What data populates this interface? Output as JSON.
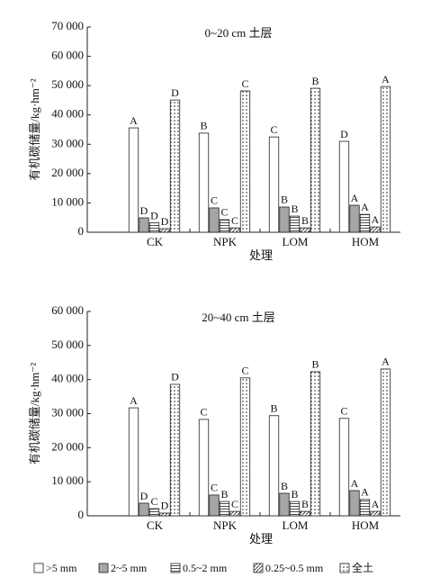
{
  "chart_data": [
    {
      "type": "bar",
      "title": "0~20 cm 土层",
      "x_label": "处理",
      "y_label": "有机碳储量/kg·hm⁻²",
      "categories": [
        "CK",
        "NPK",
        "LOM",
        "HOM"
      ],
      "ylim": [
        0,
        70000
      ],
      "yticks": [
        0,
        {
          "value": 10000,
          "label": "10 000"
        },
        {
          "value": 20000,
          "label": "20 000"
        },
        {
          "value": 30000,
          "label": "30 000"
        },
        {
          "value": 40000,
          "label": "40 000"
        },
        {
          "value": 50000,
          "label": "50 000"
        },
        {
          "value": 60000,
          "label": "60 000"
        },
        {
          "value": 70000,
          "label": "70 000"
        }
      ],
      "series": [
        {
          "name": ">5 mm",
          "color": "#ffffff",
          "pattern": "solid",
          "values": [
            35600,
            33800,
            32500,
            31000
          ],
          "letters": [
            "A",
            "B",
            "C",
            "D"
          ]
        },
        {
          "name": "2~5 mm",
          "color": "#a6a6a6",
          "pattern": "solid",
          "values": [
            4900,
            8300,
            8600,
            9200
          ],
          "letters": [
            "D",
            "C",
            "B",
            "A"
          ]
        },
        {
          "name": "0.5~2 mm",
          "color": "#ffffff",
          "pattern": "hlines",
          "values": [
            3200,
            4300,
            5500,
            6100
          ],
          "letters": [
            "D",
            "C",
            "B",
            "A"
          ]
        },
        {
          "name": "0.25~0.5 mm",
          "color": "#ffffff",
          "pattern": "hatch",
          "values": [
            1200,
            1500,
            1500,
            1800
          ],
          "letters": [
            "D",
            "C",
            "B",
            "A"
          ]
        },
        {
          "name": "全土",
          "color": "#ffffff",
          "pattern": "dots",
          "values": [
            45100,
            48200,
            49100,
            49700
          ],
          "letters": [
            "D",
            "C",
            "B",
            "A"
          ]
        }
      ]
    },
    {
      "type": "bar",
      "title": "20~40 cm 土层",
      "x_label": "处理",
      "y_label": "有机碳储量/kg·hm⁻²",
      "categories": [
        "CK",
        "NPK",
        "LOM",
        "HOM"
      ],
      "ylim": [
        0,
        60000
      ],
      "yticks": [
        0,
        {
          "value": 10000,
          "label": "10 000"
        },
        {
          "value": 20000,
          "label": "20 000"
        },
        {
          "value": 30000,
          "label": "30 000"
        },
        {
          "value": 40000,
          "label": "40 000"
        },
        {
          "value": 50000,
          "label": "50 000"
        },
        {
          "value": 60000,
          "label": "60 000"
        }
      ],
      "series": [
        {
          "values": [
            31700,
            28300,
            29400,
            28600
          ],
          "letters": [
            "A",
            "C",
            "B",
            "C"
          ]
        },
        {
          "values": [
            3700,
            6100,
            6600,
            7400
          ],
          "letters": [
            "D",
            "C",
            "B",
            "A"
          ]
        },
        {
          "values": [
            2100,
            4200,
            4200,
            4800
          ],
          "letters": [
            "C",
            "B",
            "B",
            "A"
          ]
        },
        {
          "values": [
            800,
            1300,
            1300,
            1300
          ],
          "letters": [
            "D",
            "C",
            "B",
            "A"
          ]
        },
        {
          "values": [
            38600,
            40500,
            42300,
            43100
          ],
          "letters": [
            "D",
            "C",
            "B",
            "A"
          ]
        }
      ]
    }
  ]
}
